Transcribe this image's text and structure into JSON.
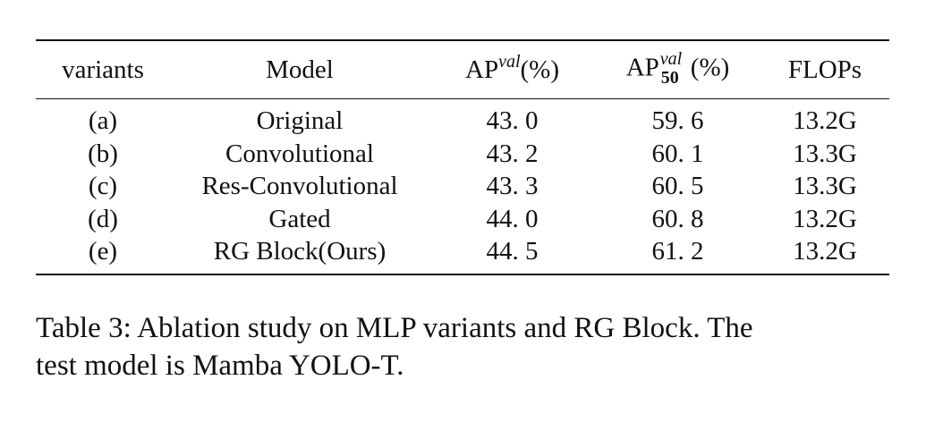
{
  "table": {
    "headers": {
      "variants": "variants",
      "model": "Model",
      "ap_base": "AP",
      "ap_sup": "val",
      "ap_unit": "(%)",
      "ap50_base": "AP",
      "ap50_sup": "val",
      "ap50_sub": "50",
      "ap50_unit": "(%)",
      "flops": "FLOPs"
    },
    "rows": [
      {
        "variant": "(a)",
        "model": "Original",
        "ap": "43. 0",
        "ap50": "59. 6",
        "flops": "13.2G"
      },
      {
        "variant": "(b)",
        "model": "Convolutional",
        "ap": "43. 2",
        "ap50": "60. 1",
        "flops": "13.3G"
      },
      {
        "variant": "(c)",
        "model": "Res-Convolutional",
        "ap": "43. 3",
        "ap50": "60. 5",
        "flops": "13.3G"
      },
      {
        "variant": "(d)",
        "model": "Gated",
        "ap": "44. 0",
        "ap50": "60. 8",
        "flops": "13.2G"
      },
      {
        "variant": "(e)",
        "model": "RG Block(Ours)",
        "ap": "44. 5",
        "ap50": "61. 2",
        "flops": "13.2G"
      }
    ]
  },
  "caption": {
    "line1": "Table 3: Ablation study on MLP variants and RG Block. The",
    "line2": "test model is Mamba YOLO-T."
  }
}
